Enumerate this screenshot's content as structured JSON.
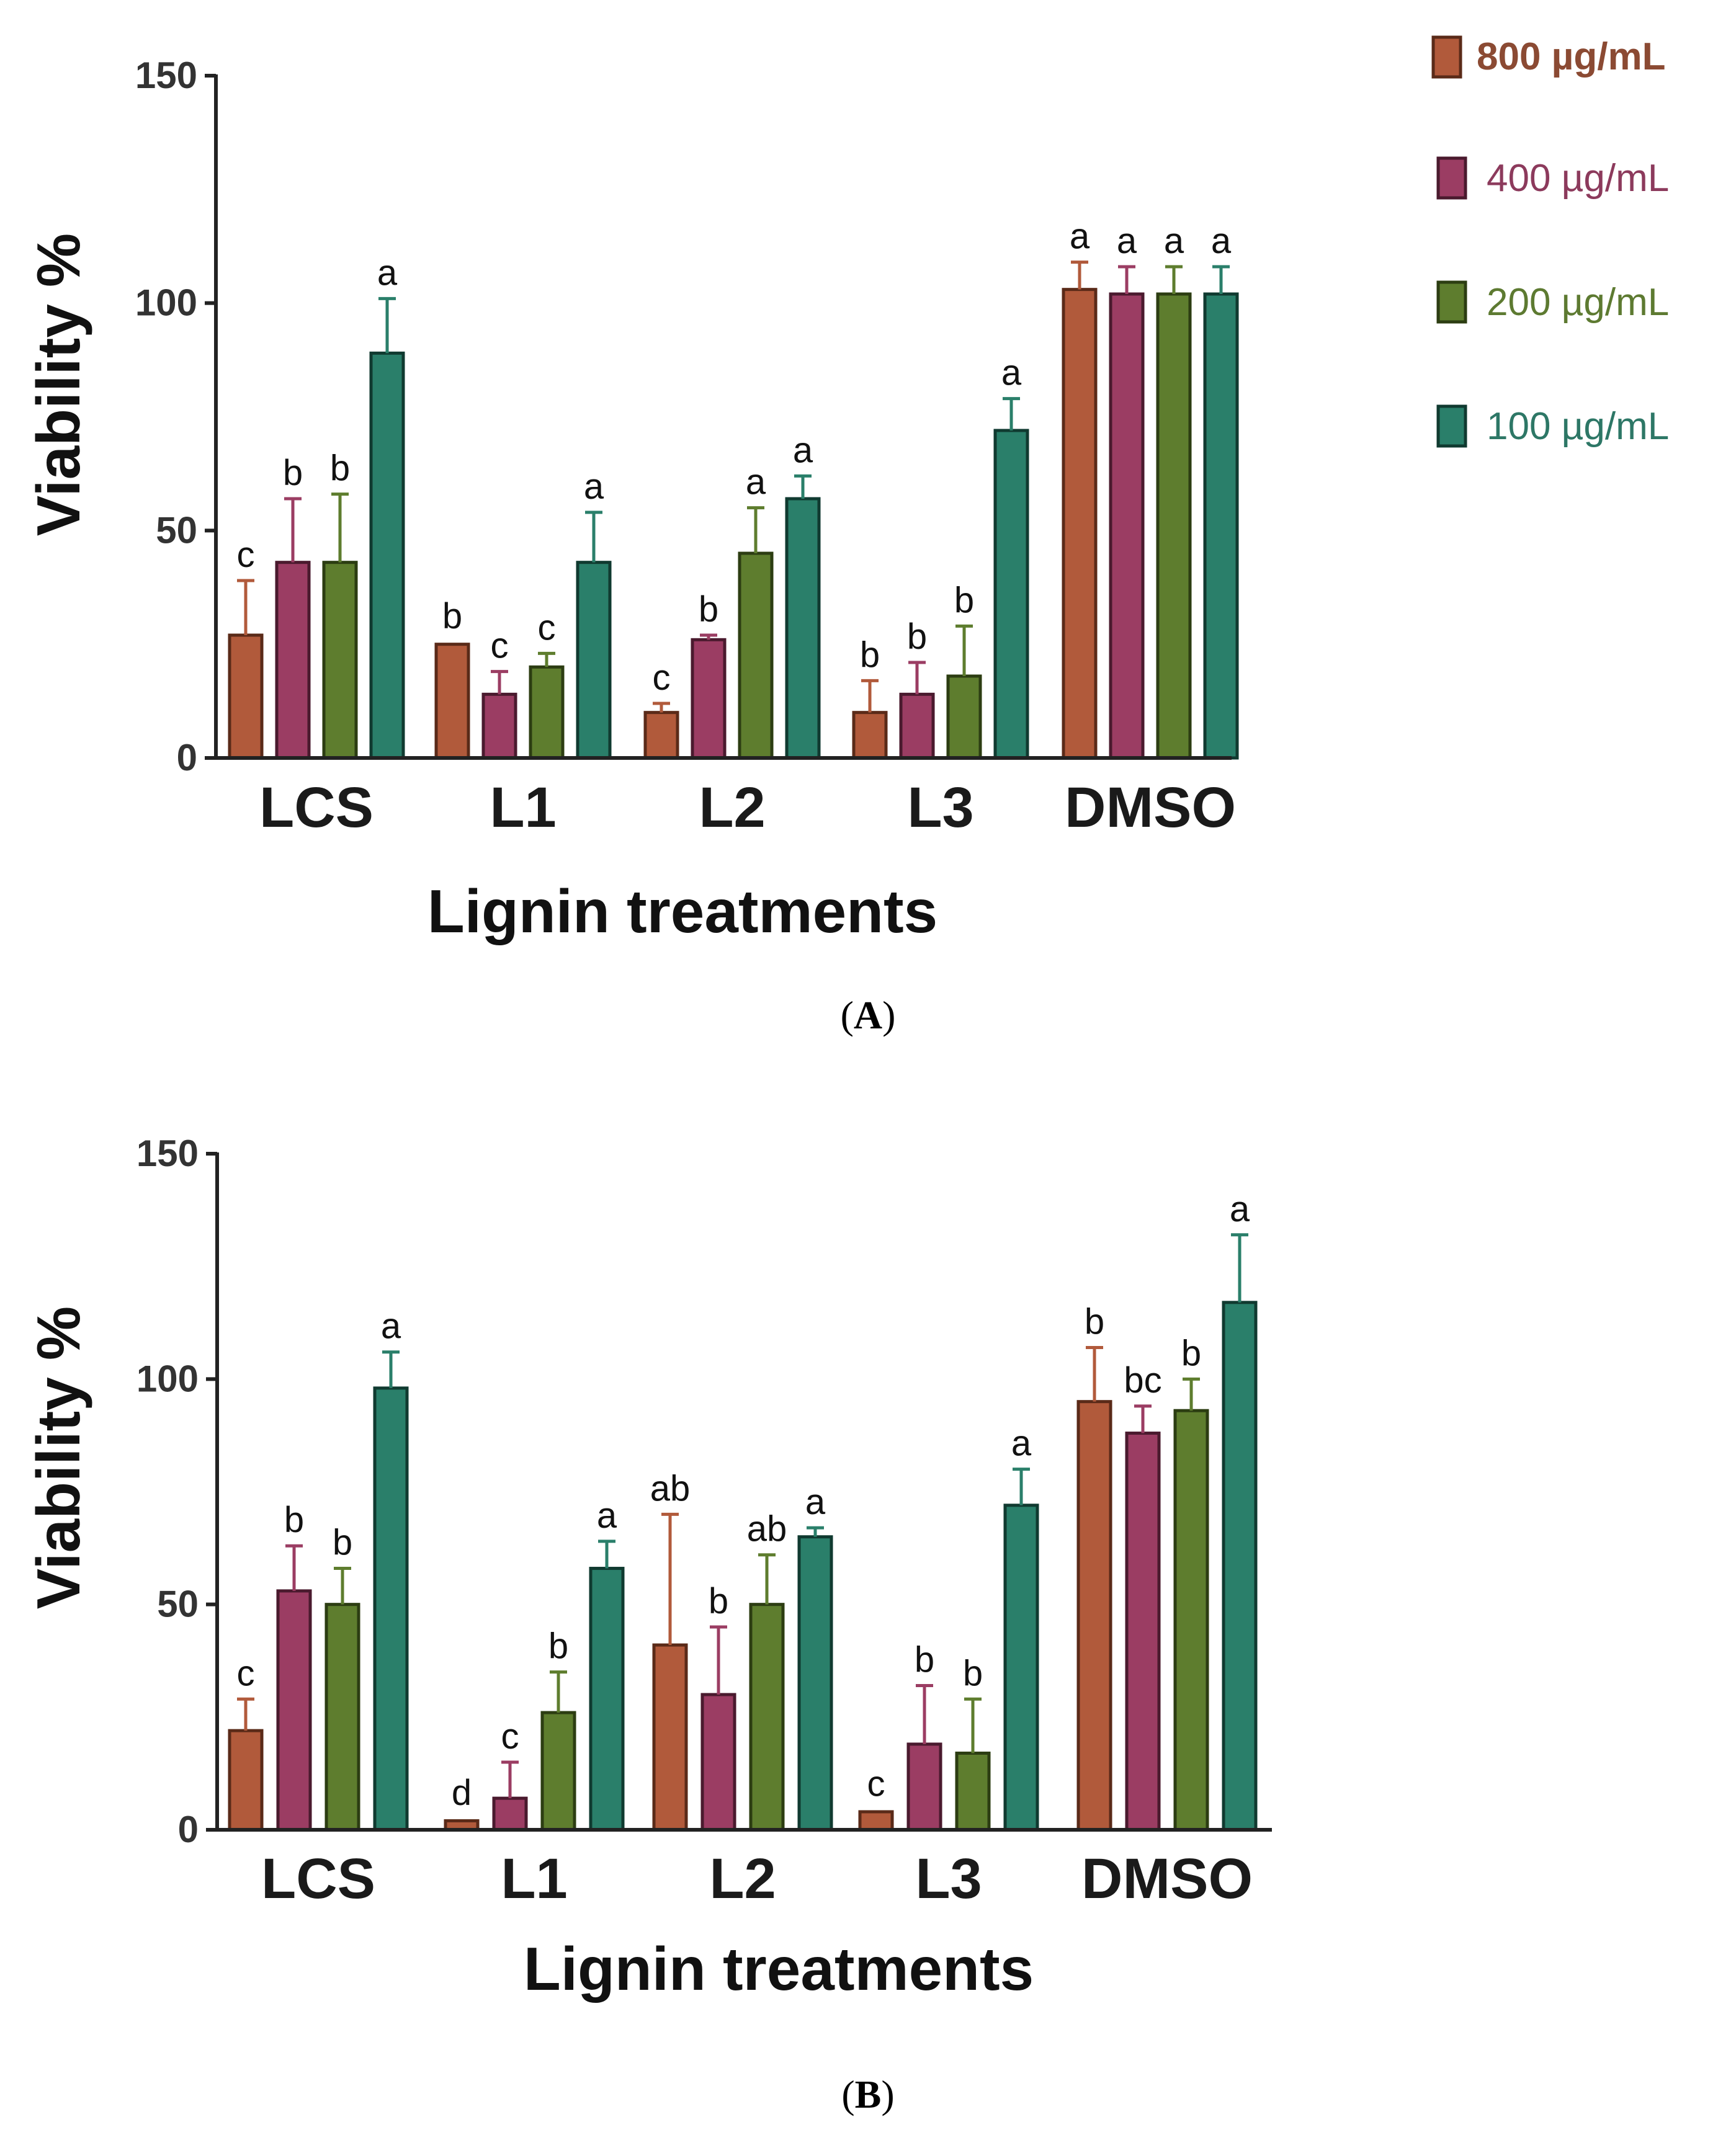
{
  "legend": {
    "items": [
      {
        "label": "800 µg/mL",
        "color": "#b15a3b",
        "text_color": "#8b4a33"
      },
      {
        "label": "400 µg/mL",
        "color": "#9b3d63",
        "text_color": "#8c3a5c"
      },
      {
        "label": "200 µg/mL",
        "color": "#5e7d2e",
        "text_color": "#5d7a31"
      },
      {
        "label": "100 µg/mL",
        "color": "#2a7f6a",
        "text_color": "#2d7766"
      }
    ]
  },
  "panel_labels": {
    "a": {
      "open": "(",
      "letter": "A",
      "close": ")"
    },
    "b": {
      "open": "(",
      "letter": "B",
      "close": ")"
    }
  },
  "chart_data": [
    {
      "panel": "A",
      "type": "bar",
      "xlabel": "Lignin treatments",
      "ylabel": "Viability %",
      "ylim": [
        0,
        150
      ],
      "yticks": [
        0,
        50,
        100,
        150
      ],
      "categories": [
        "LCS",
        "L1",
        "L2",
        "L3",
        "DMSO"
      ],
      "series": [
        {
          "name": "800 µg/mL",
          "values": [
            27,
            25,
            10,
            10,
            103
          ],
          "errors": [
            12,
            0.5,
            2,
            7,
            6
          ],
          "sig": [
            "c",
            "b",
            "c",
            "b",
            "a"
          ]
        },
        {
          "name": "400 µg/mL",
          "values": [
            43,
            14,
            26,
            14,
            102
          ],
          "errors": [
            14,
            5,
            1,
            7,
            6
          ],
          "sig": [
            "b",
            "c",
            "b",
            "b",
            "a"
          ]
        },
        {
          "name": "200 µg/mL",
          "values": [
            43,
            20,
            45,
            18,
            102
          ],
          "errors": [
            15,
            3,
            10,
            11,
            6
          ],
          "sig": [
            "b",
            "c",
            "a",
            "b",
            "a"
          ]
        },
        {
          "name": "100 µg/mL",
          "values": [
            89,
            43,
            57,
            72,
            102
          ],
          "errors": [
            12,
            11,
            5,
            7,
            6
          ],
          "sig": [
            "a",
            "a",
            "a",
            "a",
            "a"
          ]
        }
      ]
    },
    {
      "panel": "B",
      "type": "bar",
      "xlabel": "Lignin treatments",
      "ylabel": "Viability %",
      "ylim": [
        0,
        150
      ],
      "yticks": [
        0,
        50,
        100,
        150
      ],
      "categories": [
        "LCS",
        "L1",
        "L2",
        "L3",
        "DMSO"
      ],
      "series": [
        {
          "name": "800 µg/mL",
          "values": [
            22,
            2,
            41,
            4,
            95
          ],
          "errors": [
            7,
            0.5,
            29,
            0.5,
            12
          ],
          "sig": [
            "c",
            "d",
            "ab",
            "c",
            "b"
          ]
        },
        {
          "name": "400 µg/mL",
          "values": [
            53,
            7,
            30,
            19,
            88
          ],
          "errors": [
            10,
            8,
            15,
            13,
            6
          ],
          "sig": [
            "b",
            "c",
            "b",
            "b",
            "bc"
          ]
        },
        {
          "name": "200 µg/mL",
          "values": [
            50,
            26,
            50,
            17,
            93
          ],
          "errors": [
            8,
            9,
            11,
            12,
            7
          ],
          "sig": [
            "b",
            "b",
            "ab",
            "b",
            "b"
          ]
        },
        {
          "name": "100 µg/mL",
          "values": [
            98,
            58,
            65,
            72,
            117
          ],
          "errors": [
            8,
            6,
            2,
            8,
            15
          ],
          "sig": [
            "a",
            "a",
            "a",
            "a",
            "a"
          ]
        }
      ]
    }
  ]
}
